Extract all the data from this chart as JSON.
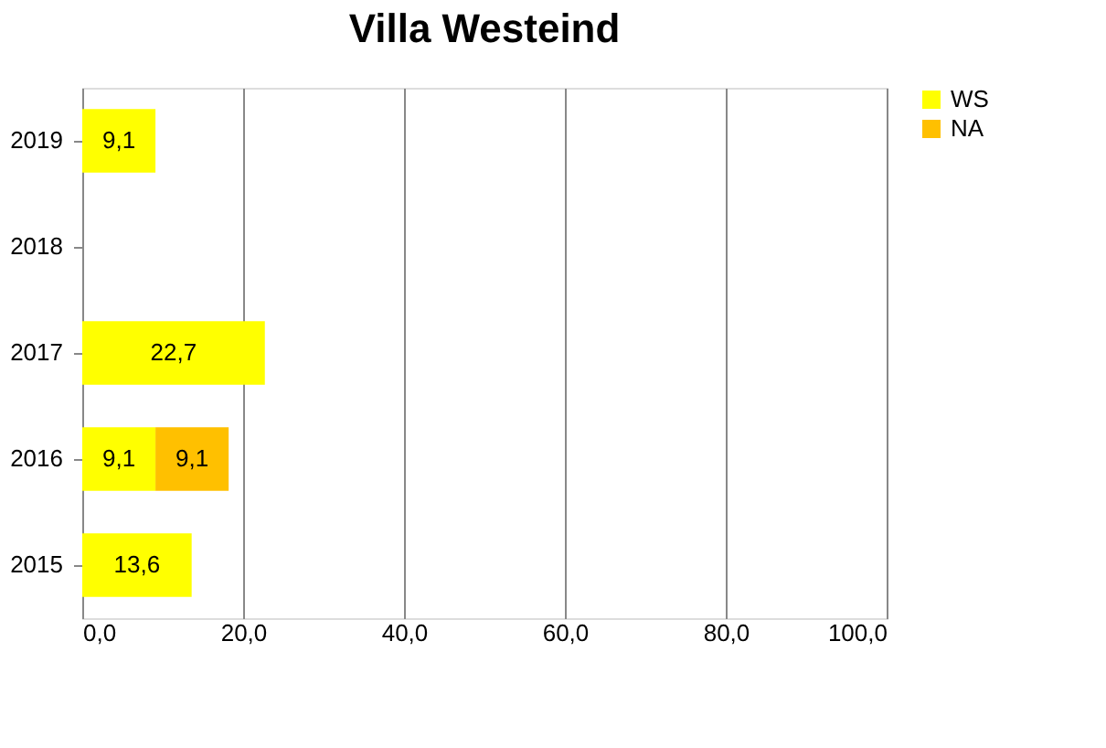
{
  "chart_data": {
    "type": "bar",
    "title": "Villa Westeind",
    "orientation": "horizontal",
    "stacked": true,
    "categories": [
      "2019",
      "2018",
      "2017",
      "2016",
      "2015"
    ],
    "series": [
      {
        "name": "WS",
        "color": "#ffff00",
        "values": [
          9.1,
          null,
          22.7,
          9.1,
          13.6
        ],
        "value_labels": [
          "9,1",
          null,
          "22,7",
          "9,1",
          "13,6"
        ]
      },
      {
        "name": "NA",
        "color": "#ffc000",
        "values": [
          null,
          null,
          null,
          9.1,
          null
        ],
        "value_labels": [
          null,
          null,
          null,
          "9,1",
          null
        ]
      }
    ],
    "xlim": [
      0,
      100
    ],
    "xticks": [
      {
        "value": 0,
        "label": "0,0"
      },
      {
        "value": 20,
        "label": "20,0"
      },
      {
        "value": 40,
        "label": "40,0"
      },
      {
        "value": 60,
        "label": "60,0"
      },
      {
        "value": 80,
        "label": "80,0"
      },
      {
        "value": 100,
        "label": "100,0"
      }
    ],
    "grid": "x",
    "legend": "right"
  }
}
